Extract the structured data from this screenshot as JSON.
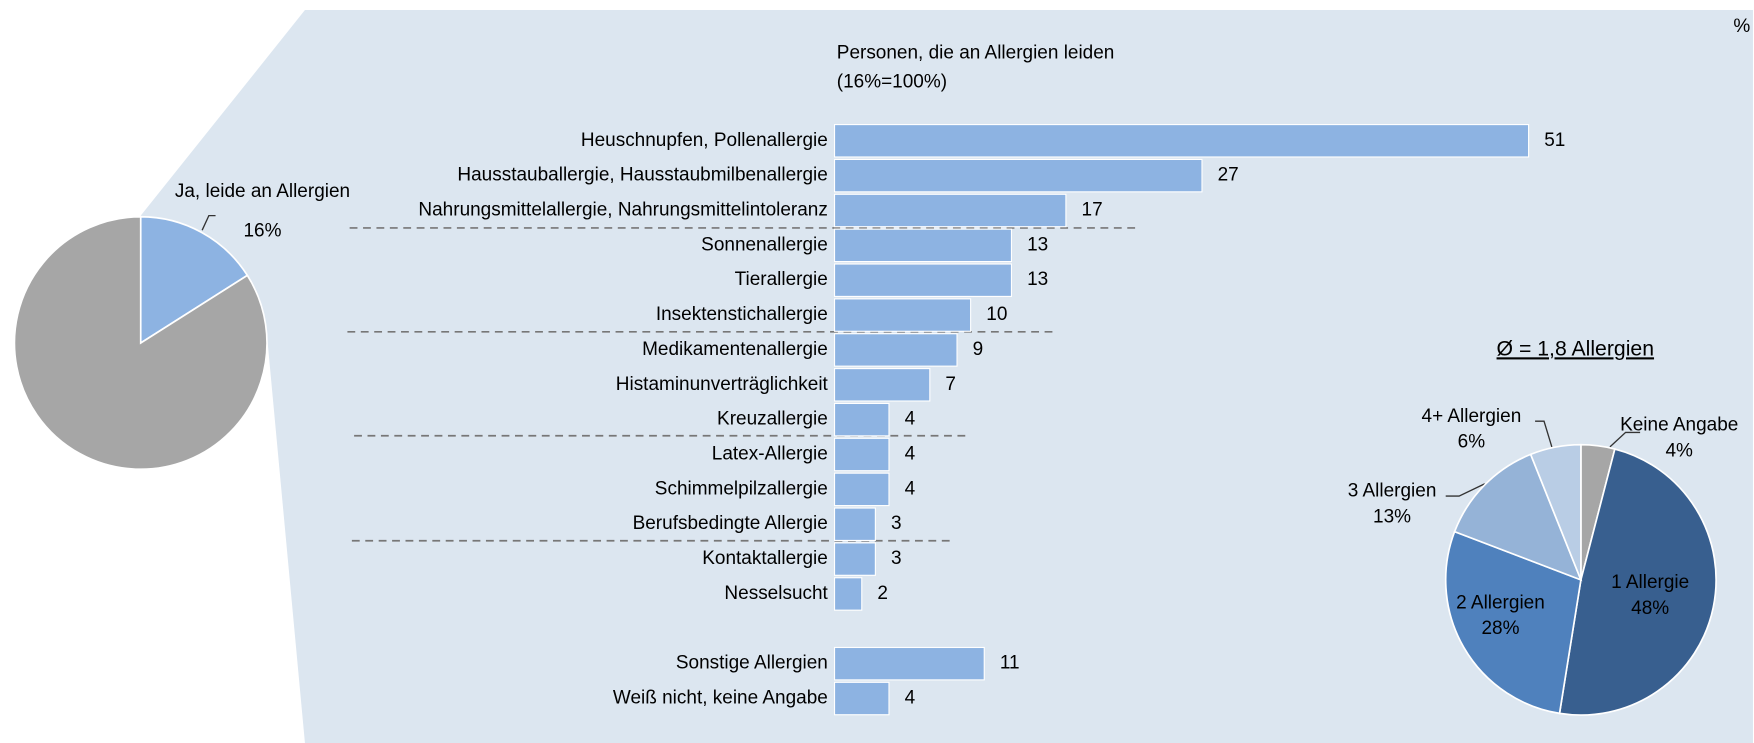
{
  "unit_label": "%",
  "chart_data": [
    {
      "type": "pie",
      "categories": [
        "Ja, leide an Allergien",
        null
      ],
      "values": [
        16,
        84
      ],
      "value_labels": [
        "16%",
        null
      ],
      "colors": [
        "#8db3e2",
        "#a6a6a6"
      ]
    },
    {
      "type": "hbar",
      "title": "Personen, die an Allergien leiden",
      "subtitle": "(16%=100%)",
      "categories": [
        "Heuschnupfen, Pollenallergie",
        "Hausstauballergie, Hausstaubmilbenallergie",
        "Nahrungsmittelallergie, Nahrungsmittelintoleranz",
        "Sonnenallergie",
        "Tierallergie",
        "Insektenstichallergie",
        "Medikamentenallergie",
        "Histaminunverträglichkeit",
        "Kreuzallergie",
        "Latex-Allergie",
        "Schimmelpilzallergie",
        "Berufsbedingte Allergie",
        "Kontaktallergie",
        "Nesselsucht",
        null,
        "Sonstige Allergien",
        "Weiß nicht, keine Angabe"
      ],
      "values": [
        51,
        27,
        17,
        13,
        13,
        10,
        9,
        7,
        4,
        4,
        4,
        3,
        3,
        2,
        null,
        11,
        4
      ],
      "color": "#8db3e2"
    },
    {
      "type": "pie",
      "title": "Ø = 1,8 Allergien",
      "categories": [
        "Keine Angabe",
        "1 Allergie",
        "2 Allergien",
        "3 Allergien",
        "4+ Allergien"
      ],
      "values": [
        4,
        48,
        28,
        13,
        6
      ],
      "value_labels": [
        "4%",
        "48%",
        "28%",
        "13%",
        "6%"
      ],
      "colors": [
        "#a6a6a6",
        "#385f8f",
        "#4f81bd",
        "#95b3d7",
        "#b9cde5"
      ]
    }
  ]
}
